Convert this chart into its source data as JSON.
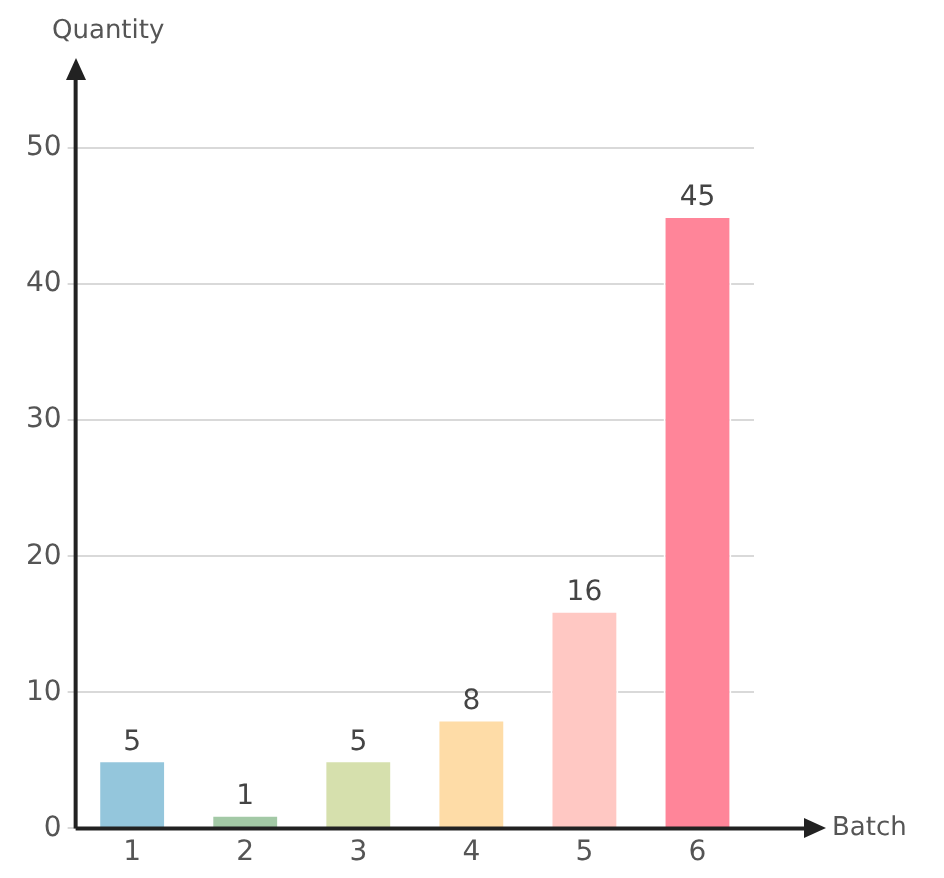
{
  "chart_data": {
    "type": "bar",
    "xlabel": "Batch",
    "ylabel": "Quantity",
    "categories": [
      "1",
      "2",
      "3",
      "4",
      "5",
      "6"
    ],
    "values": [
      5,
      1,
      5,
      8,
      16,
      45
    ],
    "colors": [
      "#94c6dc",
      "#a3c9a6",
      "#d6e0ad",
      "#fedca7",
      "#ffc8c3",
      "#ff8599"
    ],
    "ylim": [
      0,
      55
    ],
    "yticks": [
      0,
      10,
      20,
      30,
      40,
      50
    ],
    "grid": "y",
    "data_labels": true,
    "legend": false
  }
}
